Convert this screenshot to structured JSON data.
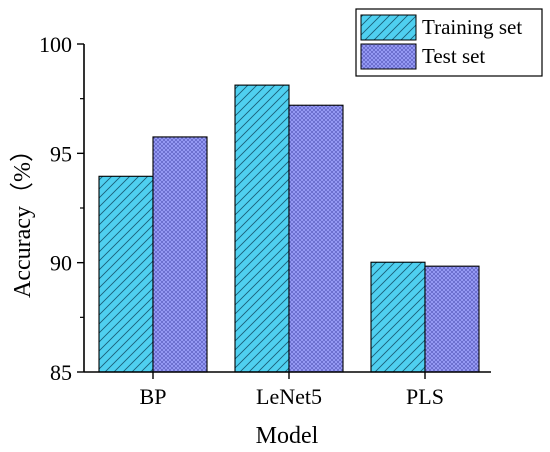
{
  "chart_data": {
    "type": "bar",
    "xlabel": "Model",
    "ylabel": "Accuracy（%）",
    "categories": [
      "BP",
      "LeNet5",
      "PLS"
    ],
    "series": [
      {
        "name": "Training set",
        "values": [
          93.95,
          98.12,
          90.02
        ],
        "color": "#4fd0f0",
        "pattern": "diagonal-hatch"
      },
      {
        "name": "Test set",
        "values": [
          95.75,
          97.2,
          89.84
        ],
        "color": "#9a9ef8",
        "pattern": "dotted-crosshatch"
      }
    ],
    "ylim": [
      85,
      100
    ],
    "yticks": [
      "85",
      "90",
      "95",
      "100"
    ],
    "grid": false,
    "legend_position": "top-right"
  }
}
